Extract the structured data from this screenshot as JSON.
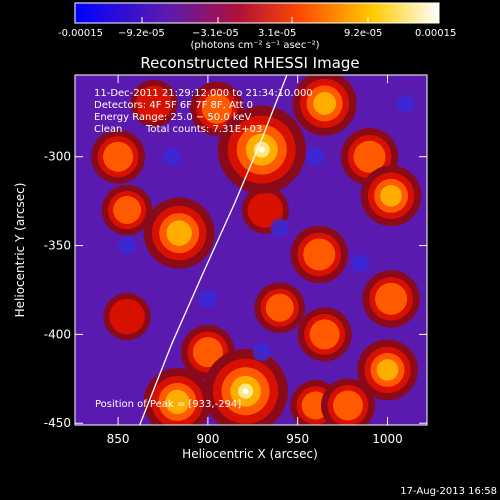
{
  "chart_data": {
    "type": "heatmap",
    "title": "Reconstructed RHESSI Image",
    "xlabel": "Heliocentric X (arcsec)",
    "ylabel": "Heliocentric Y (arcsec)",
    "xlim": [
      826,
      1022
    ],
    "ylim": [
      -451,
      -254
    ],
    "x_ticks": [
      850,
      900,
      950,
      1000
    ],
    "y_ticks": [
      -300,
      -350,
      -400,
      -450
    ],
    "colorbar": {
      "units": "(photons cm⁻² s⁻¹ asec⁻²)",
      "ticks": [
        "-0.00015",
        "−9.2e-05",
        "−3.1e-05",
        "3.1e-05",
        "9.2e-05",
        "0.00015"
      ],
      "range": [
        -0.00015,
        0.00015
      ],
      "colors": [
        "#0000ff",
        "#5a1ab0",
        "#b0103a",
        "#ff4a00",
        "#ffcc00",
        "#ffffff"
      ]
    },
    "annotations": {
      "time_range": "11-Dec-2011 21:29:12.000 to 21:34:10.000",
      "detectors": "Detectors: 4F 5F 6F 7F 8F, Att 0",
      "energy_range": "Energy Range: 25.0 − 50.0 keV",
      "algorithm": "Clean",
      "total_counts": "Total counts: 7.31E+03",
      "peak_position": "Position of Peak = [933,-294]"
    },
    "sources": [
      {
        "x": 930,
        "y": -296,
        "intensity": 1.0
      },
      {
        "x": 921,
        "y": -432,
        "intensity": 0.95
      },
      {
        "x": 884,
        "y": -343,
        "intensity": 0.75
      },
      {
        "x": 883,
        "y": -438,
        "intensity": 0.7
      },
      {
        "x": 965,
        "y": -270,
        "intensity": 0.65
      },
      {
        "x": 1002,
        "y": -322,
        "intensity": 0.6
      },
      {
        "x": 990,
        "y": -300,
        "intensity": 0.55
      },
      {
        "x": 962,
        "y": -355,
        "intensity": 0.55
      },
      {
        "x": 1002,
        "y": -380,
        "intensity": 0.55
      },
      {
        "x": 1000,
        "y": -420,
        "intensity": 0.6
      },
      {
        "x": 850,
        "y": -300,
        "intensity": 0.5
      },
      {
        "x": 855,
        "y": -330,
        "intensity": 0.45
      },
      {
        "x": 855,
        "y": -390,
        "intensity": 0.4
      },
      {
        "x": 905,
        "y": -273,
        "intensity": 0.5
      },
      {
        "x": 965,
        "y": -400,
        "intensity": 0.5
      },
      {
        "x": 960,
        "y": -440,
        "intensity": 0.45
      },
      {
        "x": 940,
        "y": -385,
        "intensity": 0.45
      },
      {
        "x": 870,
        "y": -270,
        "intensity": 0.4
      },
      {
        "x": 932,
        "y": -330,
        "intensity": 0.4
      },
      {
        "x": 978,
        "y": -440,
        "intensity": 0.5
      },
      {
        "x": 900,
        "y": -410,
        "intensity": 0.5
      }
    ],
    "limb": [
      [
        862,
        -451
      ],
      [
        880,
        -405
      ],
      [
        898,
        -364
      ],
      [
        915,
        -326
      ],
      [
        930,
        -290
      ],
      [
        937,
        -272
      ],
      [
        944,
        -254
      ]
    ]
  },
  "footer_date": "17-Aug-2013 16:58"
}
